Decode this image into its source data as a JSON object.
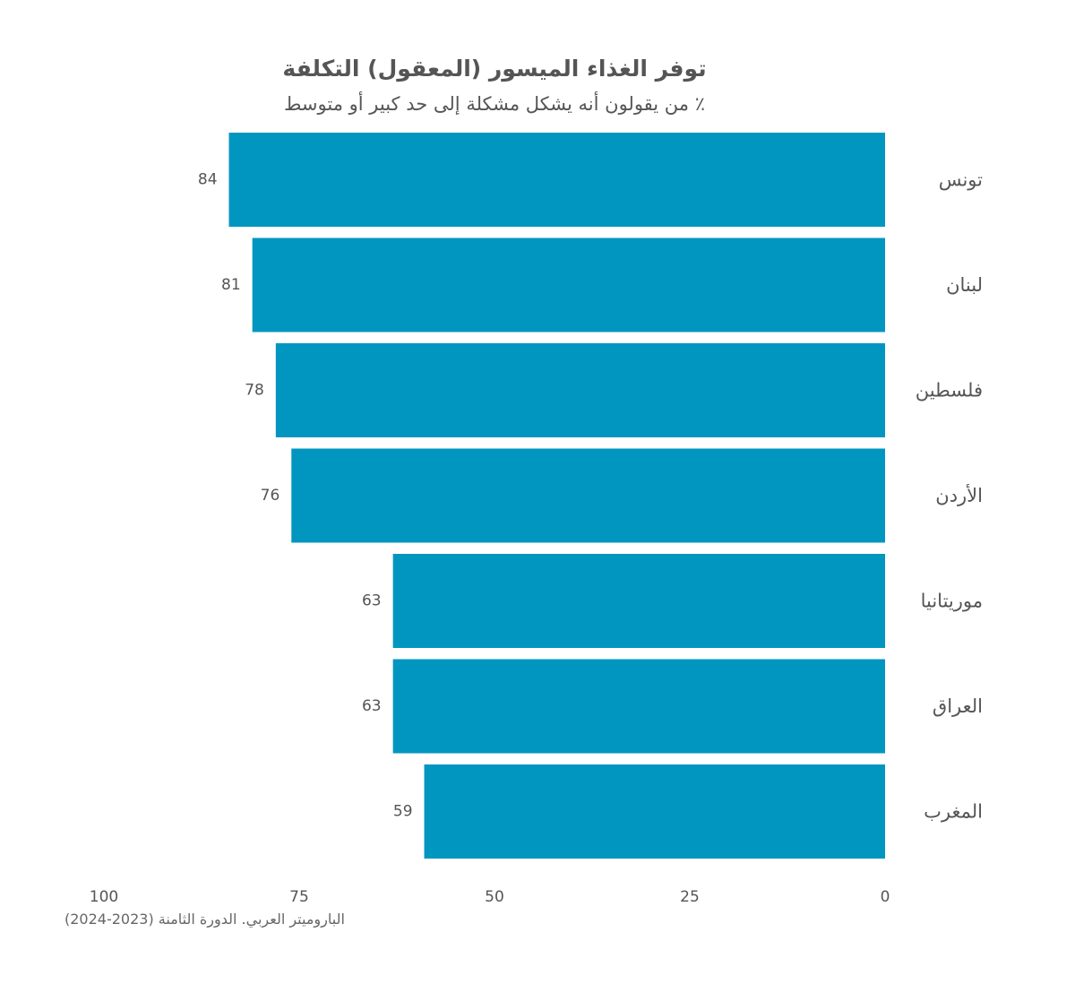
{
  "chart_data": {
    "type": "bar",
    "orientation": "horizontal",
    "title": "توفر الغذاء الميسور (المعقول) التكلفة",
    "subtitle": "٪ من يقولون أنه يشكل مشكلة إلى حد كبير أو متوسط",
    "source": "الباروميتر العربي. الدورة الثامنة (2023-2024)",
    "categories": [
      "تونس",
      "لبنان",
      "فلسطين",
      "الأردن",
      "موريتانيا",
      "العراق",
      "المغرب"
    ],
    "values": [
      84,
      81,
      78,
      76,
      63,
      63,
      59
    ],
    "xlim": [
      0,
      100
    ],
    "x_reversed": true,
    "x_ticks": [
      0,
      25,
      50,
      75,
      100
    ],
    "data_labels": true,
    "grid": false,
    "legend": "none",
    "colors": {
      "bar": "#0096BF",
      "text": "#555555",
      "source": "#666666"
    }
  }
}
